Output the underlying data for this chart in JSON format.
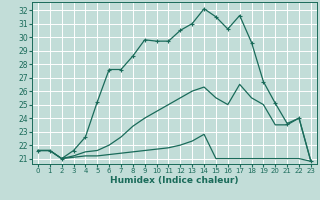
{
  "xlabel": "Humidex (Indice chaleur)",
  "xlim": [
    -0.5,
    23.5
  ],
  "ylim": [
    20.6,
    32.6
  ],
  "xticks": [
    0,
    1,
    2,
    3,
    4,
    5,
    6,
    7,
    8,
    9,
    10,
    11,
    12,
    13,
    14,
    15,
    16,
    17,
    18,
    19,
    20,
    21,
    22,
    23
  ],
  "yticks": [
    21,
    22,
    23,
    24,
    25,
    26,
    27,
    28,
    29,
    30,
    31,
    32
  ],
  "bg_color": "#c2ddd8",
  "grid_color": "#ffffff",
  "line_color": "#1a6b5a",
  "line1_x": [
    0,
    1,
    2,
    3,
    4,
    5,
    6,
    7,
    8,
    9,
    10,
    11,
    12,
    13,
    14,
    15,
    16,
    17,
    18,
    19,
    20,
    21,
    22,
    23
  ],
  "line1_y": [
    21.6,
    21.6,
    21.0,
    21.6,
    22.6,
    25.2,
    27.6,
    27.6,
    28.6,
    29.8,
    29.7,
    29.7,
    30.5,
    31.0,
    32.1,
    31.5,
    30.6,
    31.6,
    29.6,
    26.7,
    25.1,
    23.6,
    24.0,
    20.8
  ],
  "line2_x": [
    0,
    1,
    2,
    3,
    4,
    5,
    6,
    7,
    8,
    9,
    10,
    11,
    12,
    13,
    14,
    15,
    16,
    17,
    18,
    19,
    20,
    21,
    22,
    23
  ],
  "line2_y": [
    21.6,
    21.6,
    21.0,
    21.2,
    21.5,
    21.6,
    22.0,
    22.6,
    23.4,
    24.0,
    24.5,
    25.0,
    25.5,
    26.0,
    26.3,
    25.5,
    25.0,
    26.5,
    25.5,
    25.0,
    23.5,
    23.5,
    24.0,
    20.8
  ],
  "line3_x": [
    0,
    1,
    2,
    3,
    4,
    5,
    6,
    7,
    8,
    9,
    10,
    11,
    12,
    13,
    14,
    15,
    16,
    17,
    18,
    19,
    20,
    21,
    22,
    23
  ],
  "line3_y": [
    21.6,
    21.6,
    21.0,
    21.1,
    21.2,
    21.2,
    21.3,
    21.4,
    21.5,
    21.6,
    21.7,
    21.8,
    22.0,
    22.3,
    22.8,
    21.0,
    21.0,
    21.0,
    21.0,
    21.0,
    21.0,
    21.0,
    21.0,
    20.8
  ]
}
